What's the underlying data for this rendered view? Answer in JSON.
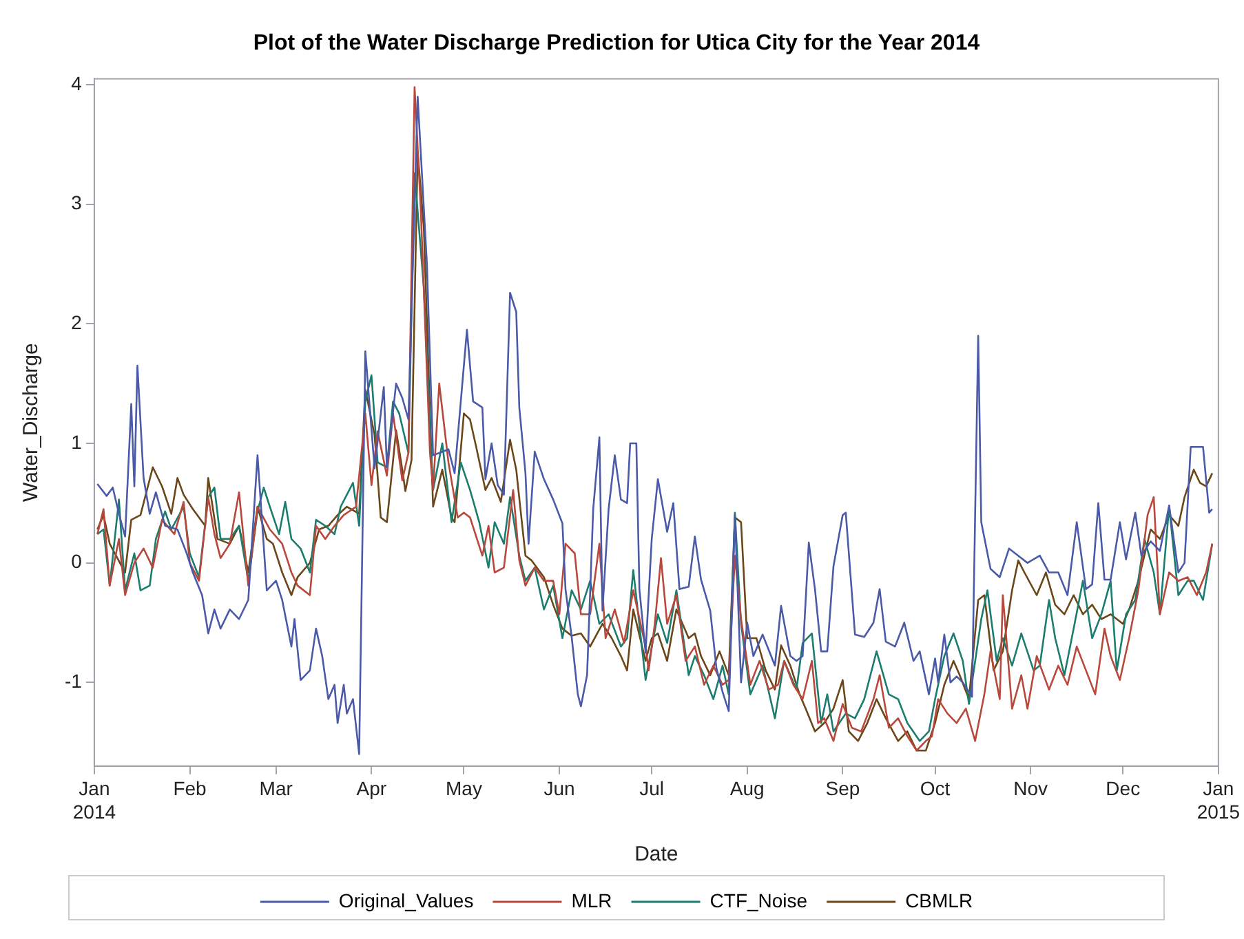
{
  "chart_data": {
    "type": "line",
    "title": "Plot of the Water Discharge Prediction for Utica City for the Year 2014",
    "xlabel": "Date",
    "ylabel": "Water_Discharge",
    "xlim": [
      "2014-01-01",
      "2015-01-01"
    ],
    "xticks": [
      {
        "value": "2014-01-01",
        "label": "Jan 2014"
      },
      {
        "value": "2014-02-01",
        "label": "Feb"
      },
      {
        "value": "2014-03-01",
        "label": "Mar"
      },
      {
        "value": "2014-04-01",
        "label": "Apr"
      },
      {
        "value": "2014-05-01",
        "label": "May"
      },
      {
        "value": "2014-06-01",
        "label": "Jun"
      },
      {
        "value": "2014-07-01",
        "label": "Jul"
      },
      {
        "value": "2014-08-01",
        "label": "Aug"
      },
      {
        "value": "2014-09-01",
        "label": "Sep"
      },
      {
        "value": "2014-10-01",
        "label": "Oct"
      },
      {
        "value": "2014-11-01",
        "label": "Nov"
      },
      {
        "value": "2014-12-01",
        "label": "Dec"
      },
      {
        "value": "2015-01-01",
        "label": "Jan 2015"
      }
    ],
    "ylim": [
      -1.7,
      4.05
    ],
    "yticks": [
      -1,
      0,
      1,
      2,
      3,
      4
    ],
    "grid": false,
    "legend": "bottom",
    "marker": "none",
    "line_style": "solid",
    "series": [
      {
        "name": "Original_Values",
        "color": "#4b5aa8",
        "x": [
          "2014-01-02",
          "2014-01-05",
          "2014-01-07",
          "2014-01-09",
          "2014-01-11",
          "2014-01-13",
          "2014-01-14",
          "2014-01-15",
          "2014-01-17",
          "2014-01-19",
          "2014-01-21",
          "2014-01-24",
          "2014-01-28",
          "2014-01-31",
          "2014-02-02",
          "2014-02-05",
          "2014-02-07",
          "2014-02-09",
          "2014-02-11",
          "2014-02-14",
          "2014-02-17",
          "2014-02-20",
          "2014-02-23",
          "2014-02-26",
          "2014-03-01",
          "2014-03-03",
          "2014-03-06",
          "2014-03-07",
          "2014-03-09",
          "2014-03-12",
          "2014-03-14",
          "2014-03-16",
          "2014-03-18",
          "2014-03-20",
          "2014-03-21",
          "2014-03-23",
          "2014-03-24",
          "2014-03-26",
          "2014-03-28",
          "2014-03-30",
          "2014-04-02",
          "2014-04-05",
          "2014-04-06",
          "2014-04-09",
          "2014-04-11",
          "2014-04-13",
          "2014-04-16",
          "2014-04-19",
          "2014-04-21",
          "2014-04-26",
          "2014-04-28",
          "2014-04-30",
          "2014-05-02",
          "2014-05-04",
          "2014-05-07",
          "2014-05-08",
          "2014-05-10",
          "2014-05-12",
          "2014-05-14",
          "2014-05-16",
          "2014-05-18",
          "2014-05-19",
          "2014-05-21",
          "2014-05-22",
          "2014-05-24",
          "2014-05-27",
          "2014-05-30",
          "2014-06-02",
          "2014-06-03",
          "2014-06-05",
          "2014-06-07",
          "2014-06-08",
          "2014-06-10",
          "2014-06-12",
          "2014-06-14",
          "2014-06-15",
          "2014-06-17",
          "2014-06-19",
          "2014-06-21",
          "2014-06-23",
          "2014-06-24",
          "2014-06-26",
          "2014-06-27",
          "2014-06-29",
          "2014-07-01",
          "2014-07-03",
          "2014-07-06",
          "2014-07-08",
          "2014-07-10",
          "2014-07-13",
          "2014-07-15",
          "2014-07-17",
          "2014-07-20",
          "2014-07-22",
          "2014-07-24",
          "2014-07-26",
          "2014-07-28",
          "2014-07-30",
          "2014-08-01",
          "2014-08-03",
          "2014-08-06",
          "2014-08-10",
          "2014-08-12",
          "2014-08-15",
          "2014-08-17",
          "2014-08-19",
          "2014-08-21",
          "2014-08-23",
          "2014-08-25",
          "2014-08-27",
          "2014-08-29",
          "2014-09-01",
          "2014-09-02",
          "2014-09-05",
          "2014-09-08",
          "2014-09-11",
          "2014-09-13",
          "2014-09-15",
          "2014-09-18",
          "2014-09-21",
          "2014-09-24",
          "2014-09-26",
          "2014-09-29",
          "2014-10-01",
          "2014-10-02",
          "2014-10-04",
          "2014-10-06",
          "2014-10-08",
          "2014-10-10",
          "2014-10-13",
          "2014-10-15",
          "2014-10-16",
          "2014-10-19",
          "2014-10-22",
          "2014-10-25",
          "2014-10-28",
          "2014-10-31",
          "2014-11-04",
          "2014-11-07",
          "2014-11-10",
          "2014-11-13",
          "2014-11-16",
          "2014-11-19",
          "2014-11-21",
          "2014-11-23",
          "2014-11-25",
          "2014-11-27",
          "2014-11-30",
          "2014-12-02",
          "2014-12-05",
          "2014-12-07",
          "2014-12-10",
          "2014-12-13",
          "2014-12-16",
          "2014-12-19",
          "2014-12-21",
          "2014-12-23",
          "2014-12-27",
          "2014-12-29",
          "2014-12-30"
        ],
        "values": [
          0.66,
          0.56,
          0.63,
          0.41,
          0.22,
          1.33,
          0.64,
          1.65,
          0.71,
          0.41,
          0.59,
          0.31,
          0.28,
          0.08,
          -0.08,
          -0.27,
          -0.59,
          -0.39,
          -0.55,
          -0.39,
          -0.47,
          -0.31,
          0.9,
          -0.23,
          -0.15,
          -0.31,
          -0.7,
          -0.47,
          -0.98,
          -0.9,
          -0.55,
          -0.78,
          -1.14,
          -1.02,
          -1.34,
          -1.02,
          -1.26,
          -1.14,
          -1.6,
          1.77,
          0.79,
          1.47,
          0.8,
          1.5,
          1.38,
          1.2,
          3.9,
          2.5,
          0.9,
          0.95,
          0.75,
          1.35,
          1.95,
          1.35,
          1.3,
          0.7,
          1.0,
          0.65,
          0.57,
          2.26,
          2.1,
          1.3,
          0.75,
          0.16,
          0.93,
          0.7,
          0.53,
          0.33,
          -0.22,
          -0.62,
          -1.1,
          -1.2,
          -0.94,
          0.45,
          1.05,
          -0.4,
          0.45,
          0.9,
          0.53,
          0.5,
          1.0,
          1.0,
          -0.22,
          -0.75,
          0.2,
          0.7,
          0.26,
          0.5,
          -0.22,
          -0.2,
          0.22,
          -0.14,
          -0.4,
          -0.88,
          -1.08,
          -1.24,
          0.4,
          -1.0,
          -0.5,
          -0.78,
          -0.6,
          -0.86,
          -0.36,
          -0.78,
          -0.82,
          -0.78,
          0.17,
          -0.22,
          -0.74,
          -0.74,
          -0.03,
          0.4,
          0.42,
          -0.6,
          -0.62,
          -0.5,
          -0.22,
          -0.66,
          -0.7,
          -0.5,
          -0.82,
          -0.74,
          -1.1,
          -0.8,
          -1.0,
          -0.6,
          -1.0,
          -0.95,
          -1.0,
          -1.12,
          1.9,
          0.34,
          -0.05,
          -0.12,
          0.12,
          0.06,
          0.0,
          0.06,
          -0.08,
          -0.08,
          -0.27,
          0.34,
          -0.22,
          -0.18,
          0.5,
          -0.14,
          -0.14,
          0.34,
          0.03,
          0.42,
          0.06,
          0.18,
          0.1,
          0.48,
          -0.08,
          0.0,
          0.97,
          0.97,
          0.42,
          0.45
        ]
      },
      {
        "name": "MLR",
        "color": "#b8483c",
        "x": [
          "2014-01-02",
          "2014-01-04",
          "2014-01-06",
          "2014-01-09",
          "2014-01-11",
          "2014-01-14",
          "2014-01-17",
          "2014-01-20",
          "2014-01-23",
          "2014-01-27",
          "2014-01-30",
          "2014-02-01",
          "2014-02-04",
          "2014-02-07",
          "2014-02-09",
          "2014-02-11",
          "2014-02-14",
          "2014-02-17",
          "2014-02-20",
          "2014-02-23",
          "2014-02-27",
          "2014-03-03",
          "2014-03-06",
          "2014-03-08",
          "2014-03-12",
          "2014-03-14",
          "2014-03-17",
          "2014-03-20",
          "2014-03-23",
          "2014-03-27",
          "2014-03-30",
          "2014-04-01",
          "2014-04-03",
          "2014-04-06",
          "2014-04-08",
          "2014-04-11",
          "2014-04-13",
          "2014-04-15",
          "2014-04-17",
          "2014-04-20",
          "2014-04-21",
          "2014-04-23",
          "2014-04-26",
          "2014-04-29",
          "2014-05-01",
          "2014-05-03",
          "2014-05-07",
          "2014-05-09",
          "2014-05-11",
          "2014-05-14",
          "2014-05-17",
          "2014-05-19",
          "2014-05-21",
          "2014-05-24",
          "2014-05-27",
          "2014-05-30",
          "2014-06-01",
          "2014-06-03",
          "2014-06-06",
          "2014-06-08",
          "2014-06-11",
          "2014-06-14",
          "2014-06-16",
          "2014-06-19",
          "2014-06-22",
          "2014-06-25",
          "2014-06-29",
          "2014-06-30",
          "2014-07-02",
          "2014-07-04",
          "2014-07-06",
          "2014-07-09",
          "2014-07-12",
          "2014-07-15",
          "2014-07-18",
          "2014-07-21",
          "2014-07-24",
          "2014-07-26",
          "2014-07-28",
          "2014-07-30",
          "2014-08-02",
          "2014-08-05",
          "2014-08-08",
          "2014-08-11",
          "2014-08-13",
          "2014-08-16",
          "2014-08-19",
          "2014-08-22",
          "2014-08-24",
          "2014-08-26",
          "2014-08-29",
          "2014-09-01",
          "2014-09-04",
          "2014-09-07",
          "2014-09-11",
          "2014-09-13",
          "2014-09-16",
          "2014-09-19",
          "2014-09-22",
          "2014-09-25",
          "2014-09-28",
          "2014-09-30",
          "2014-10-02",
          "2014-10-05",
          "2014-10-08",
          "2014-10-11",
          "2014-10-14",
          "2014-10-17",
          "2014-10-19",
          "2014-10-22",
          "2014-10-23",
          "2014-10-26",
          "2014-10-29",
          "2014-10-31",
          "2014-11-03",
          "2014-11-07",
          "2014-11-10",
          "2014-11-13",
          "2014-11-16",
          "2014-11-19",
          "2014-11-22",
          "2014-11-25",
          "2014-11-27",
          "2014-11-30",
          "2014-12-03",
          "2014-12-06",
          "2014-12-09",
          "2014-12-11",
          "2014-12-13",
          "2014-12-16",
          "2014-12-19",
          "2014-12-22",
          "2014-12-25",
          "2014-12-28",
          "2014-12-30"
        ],
        "values": [
          0.24,
          0.45,
          -0.19,
          0.2,
          -0.27,
          0.0,
          0.12,
          -0.04,
          0.36,
          0.24,
          0.51,
          0.0,
          -0.15,
          0.55,
          0.24,
          0.04,
          0.16,
          0.59,
          -0.19,
          0.47,
          0.28,
          0.16,
          -0.08,
          -0.19,
          -0.27,
          0.31,
          0.2,
          0.31,
          0.4,
          0.47,
          1.25,
          0.65,
          1.1,
          0.73,
          1.25,
          0.69,
          0.92,
          3.98,
          2.96,
          0.92,
          0.61,
          1.5,
          0.84,
          0.38,
          0.42,
          0.38,
          0.06,
          0.31,
          -0.08,
          -0.04,
          0.61,
          0.02,
          -0.19,
          -0.04,
          -0.15,
          -0.15,
          -0.43,
          0.16,
          0.08,
          -0.43,
          -0.43,
          0.16,
          -0.63,
          -0.39,
          -0.67,
          -0.23,
          -0.7,
          -0.9,
          -0.51,
          0.04,
          -0.51,
          -0.27,
          -0.82,
          -0.7,
          -1.02,
          -0.86,
          -1.02,
          -0.98,
          0.06,
          -0.47,
          -1.02,
          -0.82,
          -1.06,
          -1.02,
          -0.82,
          -1.02,
          -1.14,
          -0.82,
          -1.34,
          -1.3,
          -1.49,
          -1.18,
          -1.38,
          -1.41,
          -1.14,
          -0.94,
          -1.38,
          -1.3,
          -1.45,
          -1.57,
          -1.49,
          -1.45,
          -1.14,
          -1.26,
          -1.34,
          -1.22,
          -1.49,
          -1.1,
          -0.74,
          -1.14,
          -0.27,
          -1.22,
          -0.94,
          -1.22,
          -0.78,
          -1.06,
          -0.86,
          -1.02,
          -0.7,
          -0.9,
          -1.1,
          -0.55,
          -0.78,
          -0.98,
          -0.63,
          -0.23,
          0.4,
          0.55,
          -0.43,
          -0.08,
          -0.15,
          -0.12,
          -0.27,
          -0.08,
          0.16
        ]
      },
      {
        "name": "CTF_Noise",
        "color": "#1b7d6e",
        "x": [
          "2014-01-02",
          "2014-01-04",
          "2014-01-06",
          "2014-01-09",
          "2014-01-11",
          "2014-01-14",
          "2014-01-16",
          "2014-01-19",
          "2014-01-21",
          "2014-01-24",
          "2014-01-26",
          "2014-01-30",
          "2014-02-01",
          "2014-02-04",
          "2014-02-07",
          "2014-02-09",
          "2014-02-11",
          "2014-02-14",
          "2014-02-17",
          "2014-02-20",
          "2014-02-23",
          "2014-02-25",
          "2014-02-27",
          "2014-03-02",
          "2014-03-04",
          "2014-03-06",
          "2014-03-09",
          "2014-03-12",
          "2014-03-14",
          "2014-03-17",
          "2014-03-20",
          "2014-03-22",
          "2014-03-26",
          "2014-03-28",
          "2014-03-30",
          "2014-04-01",
          "2014-04-03",
          "2014-04-06",
          "2014-04-08",
          "2014-04-10",
          "2014-04-13",
          "2014-04-15",
          "2014-04-18",
          "2014-04-21",
          "2014-04-24",
          "2014-04-27",
          "2014-04-30",
          "2014-05-03",
          "2014-05-06",
          "2014-05-09",
          "2014-05-11",
          "2014-05-14",
          "2014-05-16",
          "2014-05-19",
          "2014-05-21",
          "2014-05-24",
          "2014-05-27",
          "2014-05-30",
          "2014-06-02",
          "2014-06-05",
          "2014-06-08",
          "2014-06-11",
          "2014-06-14",
          "2014-06-17",
          "2014-06-21",
          "2014-06-23",
          "2014-06-25",
          "2014-06-29",
          "2014-07-03",
          "2014-07-06",
          "2014-07-09",
          "2014-07-13",
          "2014-07-15",
          "2014-07-18",
          "2014-07-21",
          "2014-07-24",
          "2014-07-26",
          "2014-07-28",
          "2014-07-30",
          "2014-08-02",
          "2014-08-06",
          "2014-08-10",
          "2014-08-13",
          "2014-08-17",
          "2014-08-19",
          "2014-08-22",
          "2014-08-25",
          "2014-08-27",
          "2014-08-29",
          "2014-09-02",
          "2014-09-05",
          "2014-09-08",
          "2014-09-12",
          "2014-09-16",
          "2014-09-19",
          "2014-09-22",
          "2014-09-26",
          "2014-09-29",
          "2014-10-01",
          "2014-10-04",
          "2014-10-07",
          "2014-10-10",
          "2014-10-12",
          "2014-10-16",
          "2014-10-18",
          "2014-10-21",
          "2014-10-23",
          "2014-10-26",
          "2014-10-29",
          "2014-11-02",
          "2014-11-04",
          "2014-11-07",
          "2014-11-09",
          "2014-11-12",
          "2014-11-15",
          "2014-11-18",
          "2014-11-21",
          "2014-11-24",
          "2014-11-27",
          "2014-11-29",
          "2014-12-02",
          "2014-12-05",
          "2014-12-08",
          "2014-12-11",
          "2014-12-13",
          "2014-12-16",
          "2014-12-19",
          "2014-12-22",
          "2014-12-24",
          "2014-12-27",
          "2014-12-30"
        ],
        "values": [
          0.24,
          0.28,
          -0.19,
          0.53,
          -0.23,
          0.08,
          -0.23,
          -0.19,
          0.2,
          0.43,
          0.28,
          0.47,
          0.08,
          -0.12,
          0.55,
          0.63,
          0.2,
          0.2,
          0.31,
          -0.15,
          0.43,
          0.63,
          0.47,
          0.24,
          0.51,
          0.2,
          0.12,
          -0.08,
          0.36,
          0.31,
          0.24,
          0.47,
          0.67,
          0.31,
          1.35,
          1.57,
          0.84,
          0.8,
          1.35,
          1.25,
          0.92,
          3.26,
          2.3,
          0.61,
          1.0,
          0.34,
          0.84,
          0.61,
          0.34,
          -0.04,
          0.34,
          0.16,
          0.55,
          0.06,
          -0.15,
          -0.04,
          -0.39,
          -0.19,
          -0.63,
          -0.23,
          -0.39,
          -0.15,
          -0.51,
          -0.43,
          -0.7,
          -0.63,
          -0.06,
          -0.98,
          -0.43,
          -0.67,
          -0.23,
          -0.94,
          -0.78,
          -0.94,
          -1.14,
          -0.86,
          -1.1,
          0.42,
          -0.51,
          -1.1,
          -0.86,
          -1.3,
          -0.82,
          -1.06,
          -0.67,
          -0.59,
          -1.34,
          -1.1,
          -1.41,
          -1.26,
          -1.3,
          -1.14,
          -0.74,
          -1.1,
          -1.14,
          -1.34,
          -1.49,
          -1.41,
          -1.14,
          -0.78,
          -0.59,
          -0.82,
          -1.18,
          -0.47,
          -0.23,
          -0.82,
          -0.63,
          -0.86,
          -0.59,
          -0.9,
          -0.86,
          -0.31,
          -0.63,
          -0.94,
          -0.55,
          -0.15,
          -0.63,
          -0.43,
          -0.15,
          -0.9,
          -0.43,
          -0.31,
          0.2,
          -0.08,
          -0.43,
          0.47,
          -0.27,
          -0.15,
          -0.15,
          -0.31,
          0.16
        ]
      },
      {
        "name": "CBMLR",
        "color": "#6b4618",
        "x": [
          "2014-01-02",
          "2014-01-04",
          "2014-01-06",
          "2014-01-11",
          "2014-01-13",
          "2014-01-16",
          "2014-01-20",
          "2014-01-23",
          "2014-01-26",
          "2014-01-28",
          "2014-01-30",
          "2014-02-02",
          "2014-02-06",
          "2014-02-07",
          "2014-02-10",
          "2014-02-14",
          "2014-02-17",
          "2014-02-20",
          "2014-02-23",
          "2014-02-26",
          "2014-02-28",
          "2014-03-03",
          "2014-03-06",
          "2014-03-08",
          "2014-03-12",
          "2014-03-15",
          "2014-03-18",
          "2014-03-21",
          "2014-03-24",
          "2014-03-28",
          "2014-03-30",
          "2014-04-02",
          "2014-04-04",
          "2014-04-06",
          "2014-04-09",
          "2014-04-11",
          "2014-04-12",
          "2014-04-14",
          "2014-04-16",
          "2014-04-18",
          "2014-04-21",
          "2014-04-24",
          "2014-04-27",
          "2014-04-28",
          "2014-05-01",
          "2014-05-03",
          "2014-05-05",
          "2014-05-08",
          "2014-05-10",
          "2014-05-13",
          "2014-05-16",
          "2014-05-18",
          "2014-05-21",
          "2014-05-23",
          "2014-05-27",
          "2014-05-30",
          "2014-06-02",
          "2014-06-05",
          "2014-06-08",
          "2014-06-11",
          "2014-06-15",
          "2014-06-18",
          "2014-06-21",
          "2014-06-23",
          "2014-06-25",
          "2014-06-29",
          "2014-07-01",
          "2014-07-03",
          "2014-07-06",
          "2014-07-09",
          "2014-07-13",
          "2014-07-15",
          "2014-07-17",
          "2014-07-20",
          "2014-07-23",
          "2014-07-26",
          "2014-07-28",
          "2014-07-30",
          "2014-08-01",
          "2014-08-04",
          "2014-08-07",
          "2014-08-10",
          "2014-08-12",
          "2014-08-15",
          "2014-08-18",
          "2014-08-20",
          "2014-08-23",
          "2014-08-26",
          "2014-08-29",
          "2014-09-01",
          "2014-09-03",
          "2014-09-06",
          "2014-09-09",
          "2014-09-12",
          "2014-09-15",
          "2014-09-19",
          "2014-09-22",
          "2014-09-25",
          "2014-09-28",
          "2014-10-01",
          "2014-10-04",
          "2014-10-07",
          "2014-10-09",
          "2014-10-12",
          "2014-10-15",
          "2014-10-17",
          "2014-10-20",
          "2014-10-23",
          "2014-10-26",
          "2014-10-28",
          "2014-10-30",
          "2014-11-03",
          "2014-11-06",
          "2014-11-09",
          "2014-11-12",
          "2014-11-15",
          "2014-11-18",
          "2014-11-21",
          "2014-11-24",
          "2014-11-27",
          "2014-12-01",
          "2014-12-03",
          "2014-12-06",
          "2014-12-10",
          "2014-12-13",
          "2014-12-16",
          "2014-12-19",
          "2014-12-21",
          "2014-12-24",
          "2014-12-26",
          "2014-12-28",
          "2014-12-30"
        ],
        "values": [
          0.28,
          0.4,
          0.16,
          -0.08,
          0.36,
          0.4,
          0.8,
          0.64,
          0.41,
          0.71,
          0.57,
          0.45,
          0.31,
          0.71,
          0.2,
          0.16,
          0.31,
          -0.08,
          0.47,
          0.2,
          0.16,
          -0.08,
          -0.27,
          -0.12,
          0.0,
          0.28,
          0.31,
          0.4,
          0.47,
          0.41,
          1.45,
          1.07,
          0.38,
          0.34,
          1.11,
          0.78,
          0.6,
          0.86,
          3.44,
          2.8,
          0.47,
          0.78,
          0.38,
          0.34,
          1.25,
          1.2,
          0.97,
          0.61,
          0.71,
          0.51,
          1.03,
          0.78,
          0.06,
          0.02,
          -0.12,
          -0.35,
          -0.55,
          -0.61,
          -0.59,
          -0.7,
          -0.51,
          -0.63,
          -0.78,
          -0.9,
          -0.39,
          -0.82,
          -0.63,
          -0.59,
          -0.82,
          -0.39,
          -0.63,
          -0.59,
          -0.78,
          -0.94,
          -0.74,
          -0.94,
          0.38,
          0.34,
          -0.63,
          -0.63,
          -0.9,
          -1.06,
          -0.69,
          -0.86,
          -1.1,
          -1.22,
          -1.41,
          -1.34,
          -1.22,
          -0.98,
          -1.41,
          -1.49,
          -1.34,
          -1.14,
          -1.3,
          -1.49,
          -1.41,
          -1.57,
          -1.57,
          -1.34,
          -1.02,
          -0.82,
          -0.94,
          -1.14,
          -0.31,
          -0.27,
          -0.9,
          -0.74,
          -0.23,
          0.02,
          -0.08,
          -0.27,
          -0.08,
          -0.35,
          -0.43,
          -0.27,
          -0.43,
          -0.35,
          -0.47,
          -0.43,
          -0.51,
          -0.39,
          -0.15,
          0.28,
          0.2,
          0.4,
          0.31,
          0.55,
          0.78,
          0.67,
          0.64,
          0.75
        ]
      }
    ]
  }
}
